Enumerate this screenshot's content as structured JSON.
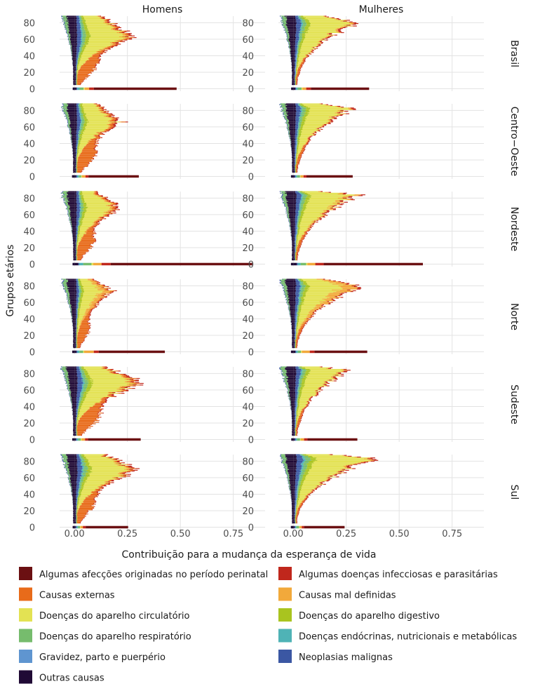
{
  "chart_data": {
    "type": "bar",
    "orientation": "horizontal",
    "stacked": true,
    "x_label": "Contribuição para a mudança da esperança de vida",
    "y_label": "Grupos etários",
    "x_ticks": [
      0.0,
      0.25,
      0.5,
      0.75
    ],
    "x_tick_labels": [
      "0.00",
      "0.25",
      "0.50",
      "0.75"
    ],
    "xlim": [
      -0.07,
      0.9
    ],
    "y_ticks": [
      0,
      20,
      40,
      60,
      80
    ],
    "y_tick_labels": [
      "0",
      "20",
      "40",
      "60",
      "80"
    ],
    "ylim": [
      -3,
      88
    ],
    "columns": [
      "Homens",
      "Mulheres"
    ],
    "rows": [
      "Brasil",
      "Centro−Oeste",
      "Nordeste",
      "Norte",
      "Sudeste",
      "Sul"
    ],
    "legend": {
      "position": "bottom",
      "entries": [
        {
          "name": "Algumas afecções originadas no período perinatal",
          "color": "#6b1012"
        },
        {
          "name": "Algumas doenças infecciosas e parasitárias",
          "color": "#c0271c"
        },
        {
          "name": "Causas externas",
          "color": "#e86b1a"
        },
        {
          "name": "Causas mal definidas",
          "color": "#f2a93b"
        },
        {
          "name": "Doenças do aparelho circulatório",
          "color": "#e3e253"
        },
        {
          "name": "Doenças do aparelho digestivo",
          "color": "#a9c41f"
        },
        {
          "name": "Doenças do aparelho respiratório",
          "color": "#76bc6d"
        },
        {
          "name": "Doenças endócrinas, nutricionais e metabólicas",
          "color": "#4fb3b6"
        },
        {
          "name": "Gravidez, parto e puerpério",
          "color": "#5f95d0"
        },
        {
          "name": "Neoplasias malignas",
          "color": "#3b57a3"
        },
        {
          "name": "Outras causas",
          "color": "#200a35"
        }
      ]
    },
    "stack_order": [
      "Outras causas",
      "Neoplasias malignas",
      "Gravidez, parto e puerpério",
      "Doenças endócrinas, nutricionais e metabólicas",
      "Doenças do aparelho respiratório",
      "Doenças do aparelho digestivo",
      "Doenças do aparelho circulatório",
      "Causas mal definidas",
      "Causas externas",
      "Algumas doenças infecciosas e parasitárias",
      "Algumas afecções originadas no período perinatal"
    ],
    "series_approx": [
      {
        "sex": "Homens",
        "region": "Brasil",
        "age0_total": 0.54,
        "age0_perinatal": 0.41,
        "peak_total": 0.26,
        "peak_age": 62,
        "externas_scale": 0.75,
        "mal_def_scale": 0.05
      },
      {
        "sex": "Mulheres",
        "region": "Brasil",
        "age0_total": 0.45,
        "age0_perinatal": 0.32,
        "peak_total": 0.29,
        "peak_age": 80,
        "externas_scale": 0.12,
        "mal_def_scale": 0.05
      },
      {
        "sex": "Homens",
        "region": "Centro−Oeste",
        "age0_total": 0.32,
        "age0_perinatal": 0.22,
        "peak_total": 0.2,
        "peak_age": 66,
        "externas_scale": 0.85,
        "mal_def_scale": 0.05
      },
      {
        "sex": "Mulheres",
        "region": "Centro−Oeste",
        "age0_total": 0.32,
        "age0_perinatal": 0.22,
        "peak_total": 0.27,
        "peak_age": 82,
        "externas_scale": 0.14,
        "mal_def_scale": 0.05
      },
      {
        "sex": "Homens",
        "region": "Nordeste",
        "age0_total": 0.87,
        "age0_perinatal": 0.66,
        "peak_total": 0.19,
        "peak_age": 68,
        "externas_scale": 0.7,
        "mal_def_scale": 0.08
      },
      {
        "sex": "Mulheres",
        "region": "Nordeste",
        "age0_total": 0.7,
        "age0_perinatal": 0.5,
        "peak_total": 0.29,
        "peak_age": 84,
        "externas_scale": 0.14,
        "mal_def_scale": 0.12
      },
      {
        "sex": "Homens",
        "region": "Norte",
        "age0_total": 0.46,
        "age0_perinatal": 0.3,
        "peak_total": 0.13,
        "peak_age": 74,
        "externas_scale": 0.5,
        "mal_def_scale": 0.5
      },
      {
        "sex": "Mulheres",
        "region": "Norte",
        "age0_total": 0.42,
        "age0_perinatal": 0.24,
        "peak_total": 0.26,
        "peak_age": 80,
        "externas_scale": 0.12,
        "mal_def_scale": 0.45
      },
      {
        "sex": "Homens",
        "region": "Sudeste",
        "age0_total": 0.35,
        "age0_perinatal": 0.25,
        "peak_total": 0.3,
        "peak_age": 68,
        "externas_scale": 0.95,
        "mal_def_scale": 0.03
      },
      {
        "sex": "Mulheres",
        "region": "Sudeste",
        "age0_total": 0.32,
        "age0_perinatal": 0.22,
        "peak_total": 0.26,
        "peak_age": 84,
        "externas_scale": 0.12,
        "mal_def_scale": 0.03
      },
      {
        "sex": "Homens",
        "region": "Sul",
        "age0_total": 0.3,
        "age0_perinatal": 0.2,
        "peak_total": 0.29,
        "peak_age": 70,
        "externas_scale": 0.65,
        "mal_def_scale": 0.03
      },
      {
        "sex": "Mulheres",
        "region": "Sul",
        "age0_total": 0.26,
        "age0_perinatal": 0.17,
        "peak_total": 0.39,
        "peak_age": 84,
        "externas_scale": 0.1,
        "mal_def_scale": 0.03
      }
    ]
  }
}
